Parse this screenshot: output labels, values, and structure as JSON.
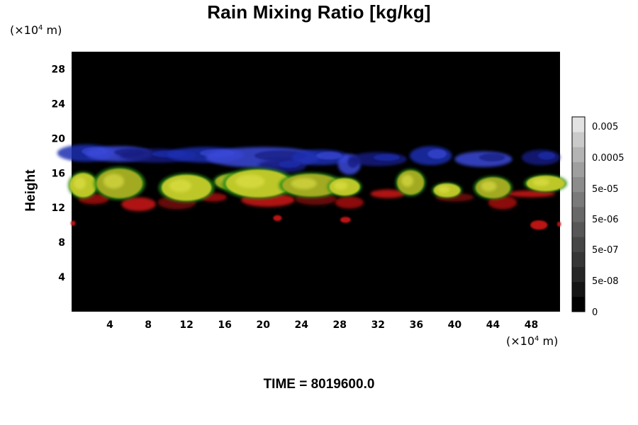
{
  "chart_data": {
    "type": "heatmap",
    "title": "Rain Mixing Ratio [kg/kg]",
    "ylabel": "Height",
    "x_unit": {
      "prefix": "(×10",
      "exp": "4",
      "suffix": " m)"
    },
    "y_unit": {
      "prefix": "(×10",
      "exp": "4",
      "suffix": " m)"
    },
    "xlim": [
      0,
      51
    ],
    "ylim": [
      0,
      30
    ],
    "x_ticks": [
      4,
      8,
      12,
      16,
      20,
      24,
      28,
      32,
      36,
      40,
      44,
      48
    ],
    "y_ticks": [
      4,
      8,
      12,
      16,
      20,
      24,
      28
    ],
    "colorbar": {
      "labels": [
        "0.005",
        "0.0005",
        "5e-05",
        "5e-06",
        "5e-07",
        "5e-08",
        "0"
      ],
      "levels": 13,
      "colors": [
        "#000000",
        "#141414",
        "#262626",
        "#363636",
        "#464646",
        "#575757",
        "#686868",
        "#7a7a7a",
        "#8c8c8c",
        "#9f9f9f",
        "#b4b4b4",
        "#cacaca",
        "#e2e2e2"
      ]
    },
    "layers": {
      "blue_colors": [
        "#1f2fb0",
        "#3a48d8",
        "#161f80"
      ],
      "yellow_colors": [
        "#c6cc2c",
        "#a8ad22",
        "#e2e34a"
      ],
      "green_color": "#2c8a18",
      "red_colors": [
        "#9c1010",
        "#c41616",
        "#700808"
      ],
      "blue_band": [
        {
          "x": 1.5,
          "y": 18.3,
          "w": 3.0,
          "h": 1.0
        },
        {
          "x": 5.0,
          "y": 18.2,
          "w": 3.5,
          "h": 0.9
        },
        {
          "x": 9.0,
          "y": 18.0,
          "w": 4.0,
          "h": 0.8
        },
        {
          "x": 14.0,
          "y": 18.1,
          "w": 4.0,
          "h": 0.9
        },
        {
          "x": 20.0,
          "y": 17.8,
          "w": 6.0,
          "h": 1.2
        },
        {
          "x": 22.0,
          "y": 16.8,
          "w": 2.5,
          "h": 0.8
        },
        {
          "x": 26.0,
          "y": 17.8,
          "w": 3.0,
          "h": 0.9
        },
        {
          "x": 29.0,
          "y": 17.0,
          "w": 1.2,
          "h": 1.2
        },
        {
          "x": 32.0,
          "y": 17.6,
          "w": 3.0,
          "h": 0.8
        },
        {
          "x": 37.5,
          "y": 18.0,
          "w": 2.2,
          "h": 1.1
        },
        {
          "x": 43.0,
          "y": 17.6,
          "w": 3.0,
          "h": 0.9
        },
        {
          "x": 49.0,
          "y": 17.8,
          "w": 2.0,
          "h": 0.9
        }
      ],
      "cells": [
        {
          "x": 1.2,
          "y": 14.6,
          "w": 1.4,
          "h": 1.4
        },
        {
          "x": 5.0,
          "y": 14.8,
          "w": 2.4,
          "h": 1.7
        },
        {
          "x": 12.0,
          "y": 14.3,
          "w": 2.6,
          "h": 1.5
        },
        {
          "x": 16.8,
          "y": 15.0,
          "w": 1.8,
          "h": 0.9
        },
        {
          "x": 19.5,
          "y": 14.8,
          "w": 3.4,
          "h": 1.6
        },
        {
          "x": 25.0,
          "y": 14.6,
          "w": 3.0,
          "h": 1.3
        },
        {
          "x": 28.5,
          "y": 14.4,
          "w": 1.6,
          "h": 1.0
        },
        {
          "x": 35.4,
          "y": 14.9,
          "w": 1.4,
          "h": 1.4
        },
        {
          "x": 39.2,
          "y": 14.0,
          "w": 1.4,
          "h": 0.8
        },
        {
          "x": 44.0,
          "y": 14.3,
          "w": 1.8,
          "h": 1.2
        },
        {
          "x": 49.5,
          "y": 14.8,
          "w": 2.0,
          "h": 0.9
        }
      ],
      "red_band": [
        {
          "x": 2.3,
          "y": 13.0,
          "w": 1.6,
          "h": 0.6
        },
        {
          "x": 7.0,
          "y": 12.4,
          "w": 1.8,
          "h": 0.8
        },
        {
          "x": 11.0,
          "y": 12.6,
          "w": 2.0,
          "h": 0.8
        },
        {
          "x": 14.8,
          "y": 13.2,
          "w": 1.4,
          "h": 0.5
        },
        {
          "x": 20.5,
          "y": 12.9,
          "w": 2.8,
          "h": 0.8
        },
        {
          "x": 25.5,
          "y": 13.0,
          "w": 2.2,
          "h": 0.7
        },
        {
          "x": 29.0,
          "y": 12.6,
          "w": 1.5,
          "h": 0.7
        },
        {
          "x": 33.0,
          "y": 13.6,
          "w": 1.8,
          "h": 0.5
        },
        {
          "x": 40.0,
          "y": 13.2,
          "w": 2.0,
          "h": 0.5
        },
        {
          "x": 45.0,
          "y": 12.6,
          "w": 1.5,
          "h": 0.8
        },
        {
          "x": 48.0,
          "y": 13.6,
          "w": 2.5,
          "h": 0.4
        }
      ],
      "red_spots": [
        {
          "x": 21.5,
          "y": 10.8,
          "w": 0.45,
          "h": 0.35
        },
        {
          "x": 28.6,
          "y": 10.6,
          "w": 0.55,
          "h": 0.35
        },
        {
          "x": 48.8,
          "y": 10.0,
          "w": 0.9,
          "h": 0.55
        },
        {
          "x": 0.15,
          "y": 10.2,
          "w": 0.25,
          "h": 0.3
        },
        {
          "x": 50.9,
          "y": 10.1,
          "w": 0.2,
          "h": 0.3
        }
      ]
    }
  },
  "time_label": "TIME = 8019600.0"
}
